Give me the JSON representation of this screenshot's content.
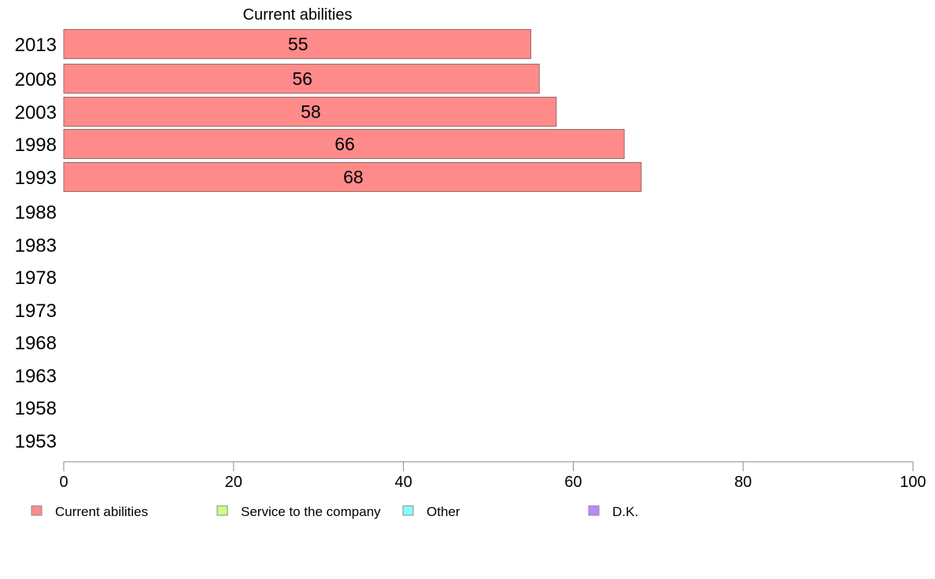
{
  "chart_data": {
    "type": "bar",
    "orientation": "horizontal",
    "title": "",
    "series_title": "Current abilities",
    "categories": [
      "2013",
      "2008",
      "2003",
      "1998",
      "1993",
      "1988",
      "1983",
      "1978",
      "1973",
      "1968",
      "1963",
      "1958",
      "1953"
    ],
    "series": [
      {
        "name": "Current abilities",
        "color": "#ff8a8a",
        "values": [
          55,
          56,
          58,
          66,
          68,
          null,
          null,
          null,
          null,
          null,
          null,
          null,
          null
        ]
      },
      {
        "name": "Service to the company",
        "color": "#ccff88",
        "values": [
          null,
          null,
          null,
          null,
          null,
          null,
          null,
          null,
          null,
          null,
          null,
          null,
          null
        ]
      },
      {
        "name": "Other",
        "color": "#88ffff",
        "values": [
          null,
          null,
          null,
          null,
          null,
          null,
          null,
          null,
          null,
          null,
          null,
          null,
          null
        ]
      },
      {
        "name": "D.K.",
        "color": "#bb88ff",
        "values": [
          null,
          null,
          null,
          null,
          null,
          null,
          null,
          null,
          null,
          null,
          null,
          null,
          null
        ]
      }
    ],
    "xlim": [
      0,
      100
    ],
    "xticks": [
      0,
      20,
      40,
      60,
      80,
      100
    ],
    "xlabel": "",
    "ylabel": "",
    "grid": false,
    "legend_position": "bottom"
  }
}
